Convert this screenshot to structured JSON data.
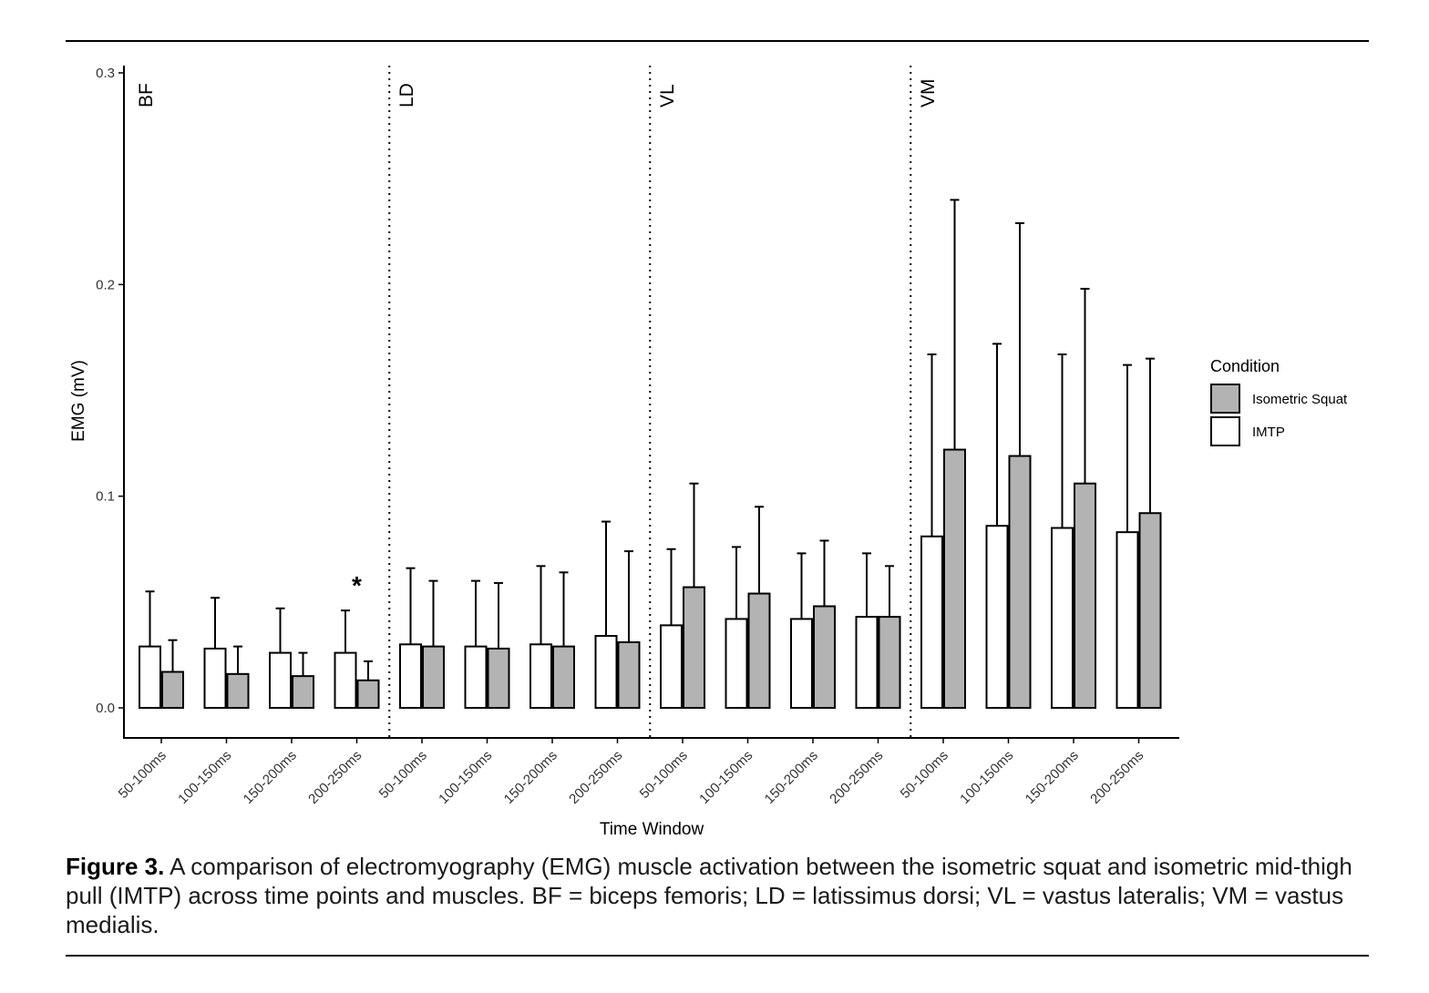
{
  "chart_data": {
    "type": "bar",
    "ylabel": "EMG (mV)",
    "xlabel": "Time Window",
    "ylim": [
      0,
      0.3
    ],
    "yticks": [
      0.0,
      0.1,
      0.2,
      0.3
    ],
    "ytick_labels": [
      "0.0",
      "0.1",
      "0.2",
      "0.3"
    ],
    "panels": [
      "BF",
      "LD",
      "VL",
      "VM"
    ],
    "categories": [
      "50-100ms",
      "100-150ms",
      "150-200ms",
      "200-250ms"
    ],
    "legend": {
      "title": "Condition",
      "position": "right",
      "entries": [
        {
          "label": "Isometric Squat",
          "color": "#b3b3b3"
        },
        {
          "label": "IMTP",
          "color": "#ffffff"
        }
      ]
    },
    "series": [
      {
        "name": "IMTP",
        "color": "#ffffff",
        "values": [
          [
            0.029,
            0.028,
            0.026,
            0.026
          ],
          [
            0.03,
            0.029,
            0.03,
            0.034
          ],
          [
            0.039,
            0.042,
            0.042,
            0.043
          ],
          [
            0.081,
            0.086,
            0.085,
            0.083
          ]
        ],
        "errors": [
          [
            0.055,
            0.052,
            0.047,
            0.046
          ],
          [
            0.066,
            0.06,
            0.067,
            0.088
          ],
          [
            0.075,
            0.076,
            0.073,
            0.073
          ],
          [
            0.167,
            0.172,
            0.167,
            0.162
          ]
        ]
      },
      {
        "name": "Isometric Squat",
        "color": "#b3b3b3",
        "values": [
          [
            0.017,
            0.016,
            0.015,
            0.013
          ],
          [
            0.029,
            0.028,
            0.029,
            0.031
          ],
          [
            0.057,
            0.054,
            0.048,
            0.043
          ],
          [
            0.122,
            0.119,
            0.106,
            0.092
          ]
        ],
        "errors": [
          [
            0.032,
            0.029,
            0.026,
            0.022
          ],
          [
            0.06,
            0.059,
            0.064,
            0.074
          ],
          [
            0.106,
            0.095,
            0.079,
            0.067
          ],
          [
            0.24,
            0.229,
            0.198,
            0.165
          ]
        ]
      }
    ],
    "annotations": [
      {
        "text": "*",
        "panel": "BF",
        "category": "200-250ms"
      }
    ]
  },
  "caption": {
    "label": "Figure 3.",
    "text": "A comparison of electromyography (EMG) muscle activation between the isometric squat and isometric mid-thigh pull (IMTP) across time points and muscles. BF = biceps femoris; LD = latissimus dorsi; VL = vastus lateralis; VM = vastus medialis."
  }
}
